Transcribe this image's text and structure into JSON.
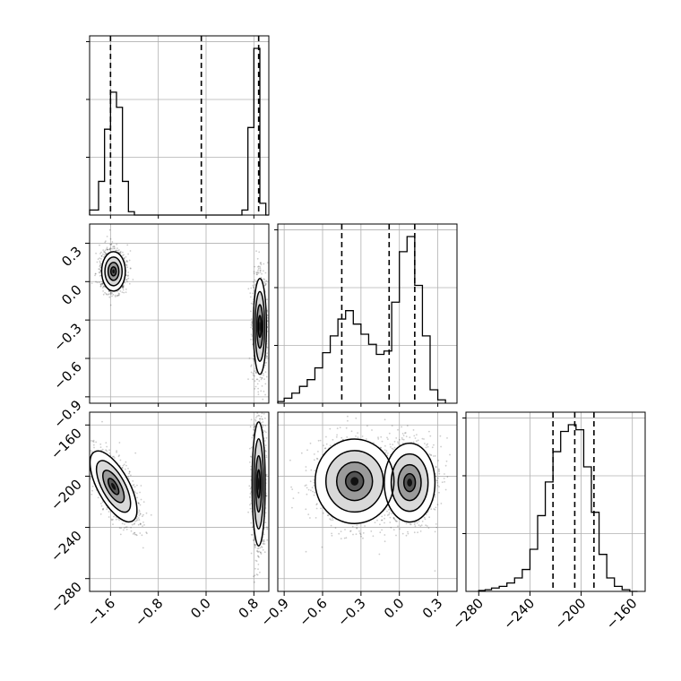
{
  "chart_data": {
    "type": "scatter",
    "plot_kind": "corner",
    "grid": true,
    "parameters": [
      {
        "ticks": [
          "−1.6",
          "−0.8",
          "0.0",
          "0.8"
        ],
        "tick_values": [
          -1.6,
          -0.8,
          0.0,
          0.8
        ],
        "range": [
          -1.95,
          1.05
        ],
        "quantiles": [
          -1.6,
          -0.08,
          0.88
        ],
        "hist": {
          "edges": [
            -1.95,
            -1.8,
            -1.7,
            -1.6,
            -1.5,
            -1.4,
            -1.3,
            -1.2,
            -1.1,
            0.6,
            0.7,
            0.8,
            0.9,
            1.0,
            1.05
          ],
          "counts": [
            0.03,
            0.2,
            0.51,
            0.73,
            0.64,
            0.2,
            0.02,
            0.0,
            0.0,
            0.03,
            0.52,
            0.99,
            0.07,
            0.0
          ]
        }
      },
      {
        "ticks": [
          "−0.9",
          "−0.6",
          "−0.3",
          "0.0",
          "0.3"
        ],
        "tick_values": [
          -0.9,
          -0.6,
          -0.3,
          0.0,
          0.3
        ],
        "range": [
          -0.95,
          0.45
        ],
        "quantiles": [
          -0.45,
          -0.08,
          0.12
        ],
        "hist": {
          "edges": [
            -0.95,
            -0.9,
            -0.84,
            -0.78,
            -0.72,
            -0.66,
            -0.6,
            -0.54,
            -0.48,
            -0.42,
            -0.36,
            -0.3,
            -0.24,
            -0.18,
            -0.12,
            -0.06,
            0.0,
            0.06,
            0.12,
            0.18,
            0.24,
            0.3,
            0.36
          ],
          "counts": [
            0.01,
            0.03,
            0.06,
            0.1,
            0.14,
            0.21,
            0.3,
            0.4,
            0.5,
            0.55,
            0.47,
            0.41,
            0.35,
            0.29,
            0.31,
            0.6,
            0.9,
            0.99,
            0.7,
            0.4,
            0.08,
            0.02
          ]
        }
      },
      {
        "ticks": [
          "−280",
          "−240",
          "−200",
          "−160"
        ],
        "tick_values": [
          -280,
          -240,
          -200,
          -160
        ],
        "range": [
          -290,
          -150
        ],
        "quantiles": [
          -222,
          -205,
          -190
        ],
        "hist": {
          "edges": [
            -280,
            -275,
            -270,
            -264,
            -258,
            -252,
            -246,
            -240,
            -234,
            -228,
            -222,
            -216,
            -210,
            -204,
            -198,
            -192,
            -186,
            -180,
            -174,
            -168,
            -162,
            -156
          ],
          "counts": [
            0.005,
            0.01,
            0.02,
            0.03,
            0.05,
            0.08,
            0.13,
            0.25,
            0.45,
            0.65,
            0.83,
            0.95,
            0.99,
            0.96,
            0.74,
            0.47,
            0.22,
            0.08,
            0.03,
            0.01,
            0.0
          ]
        }
      }
    ],
    "pairs": [
      {
        "x": 0,
        "y": 1,
        "modes": [
          {
            "center": [
              -1.55,
              0.08
            ],
            "spread": [
              0.09,
              0.07
            ],
            "rot": 0,
            "weight": 0.5
          },
          {
            "center": [
              0.9,
              -0.35
            ],
            "spread": [
              0.05,
              0.17
            ],
            "rot": 0,
            "weight": 0.5
          }
        ]
      },
      {
        "x": 0,
        "y": 2,
        "modes": [
          {
            "center": [
              -1.55,
              -208
            ],
            "spread": [
              0.12,
              14
            ],
            "rot": -0.5,
            "weight": 0.5
          },
          {
            "center": [
              0.88,
              -206
            ],
            "spread": [
              0.05,
              22
            ],
            "rot": 0,
            "weight": 0.5
          }
        ]
      },
      {
        "x": 1,
        "y": 2,
        "modes": [
          {
            "center": [
              -0.35,
              -204
            ],
            "spread": [
              0.14,
              15
            ],
            "rot": 0,
            "weight": 0.45
          },
          {
            "center": [
              0.08,
              -205
            ],
            "spread": [
              0.09,
              14
            ],
            "rot": 0,
            "weight": 0.55
          }
        ]
      }
    ]
  }
}
